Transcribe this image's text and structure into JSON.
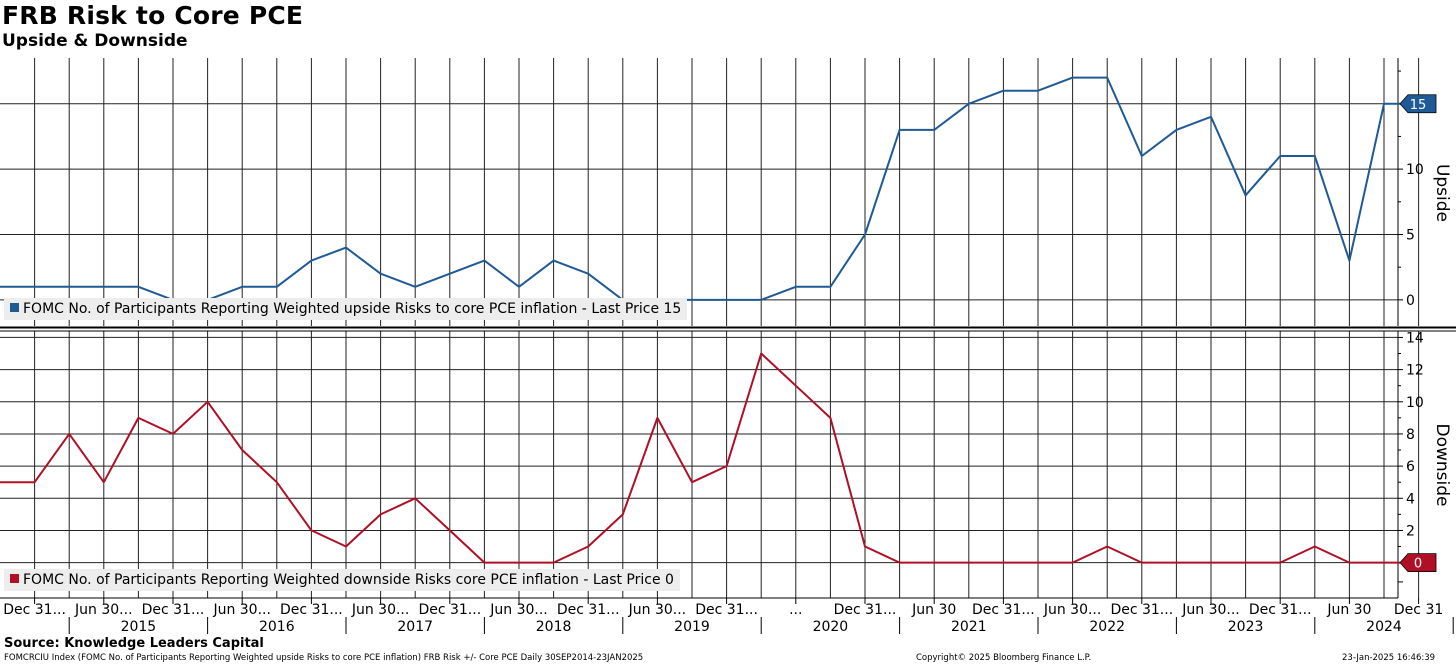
{
  "title": "FRB Risk to Core PCE",
  "subtitle": "Upside & Downside",
  "source": "Source: Knowledge Leaders Capital",
  "footer": {
    "left": "FOMCRCIU Index (FOMC No. of Participants Reporting Weighted upside Risks to core PCE inflation) FRB Risk +/- Core PCE  Daily 30SEP2014-23JAN2025",
    "center": "Copyright© 2025 Bloomberg Finance L.P.",
    "right": "23-Jan-2025 16:46:39"
  },
  "colors": {
    "upside": "#1f5a96",
    "downside": "#b01025",
    "grid": "#000000",
    "legend_bg": "#ededed"
  },
  "chart_data": [
    {
      "type": "line",
      "name": "Upside",
      "ylabel": "Upside",
      "ylim": [
        -2,
        18.5
      ],
      "yticks": [
        0,
        5,
        10,
        15
      ],
      "legend": "FOMC No. of Participants Reporting Weighted upside Risks to core PCE inflation - Last Price 15",
      "last_price": "15",
      "grid": true,
      "series": [
        {
          "name": "FOMC No. of Participants Reporting Weighted upside Risks to core PCE inflation",
          "x": [
            "2014-09-30",
            "2014-12-31",
            "2015-03-31",
            "2015-06-30",
            "2015-09-30",
            "2015-12-31",
            "2016-03-31",
            "2016-06-30",
            "2016-09-30",
            "2016-12-31",
            "2017-03-31",
            "2017-06-30",
            "2017-09-30",
            "2017-12-31",
            "2018-03-31",
            "2018-06-30",
            "2018-09-30",
            "2018-12-31",
            "2019-03-31",
            "2019-06-30",
            "2019-09-30",
            "2019-12-31",
            "2020-03-31",
            "2020-06-30",
            "2020-09-30",
            "2020-12-31",
            "2021-03-31",
            "2021-06-30",
            "2021-09-30",
            "2021-12-31",
            "2022-03-31",
            "2022-06-30",
            "2022-09-30",
            "2022-12-31",
            "2023-03-31",
            "2023-06-30",
            "2023-09-30",
            "2023-12-31",
            "2024-03-31",
            "2024-06-30",
            "2024-09-30",
            "2024-12-31"
          ],
          "values": [
            1,
            1,
            1,
            1,
            1,
            0,
            0,
            1,
            1,
            3,
            4,
            2,
            1,
            2,
            3,
            1,
            3,
            2,
            0,
            0,
            0,
            0,
            0,
            1,
            1,
            5,
            13,
            13,
            15,
            16,
            16,
            17,
            17,
            11,
            13,
            14,
            8,
            11,
            11,
            3,
            15,
            15
          ]
        }
      ]
    },
    {
      "type": "line",
      "name": "Downside",
      "ylabel": "Downside",
      "ylim": [
        -2.2,
        14.4
      ],
      "yticks": [
        2,
        4,
        6,
        8,
        10,
        12,
        14
      ],
      "legend": "FOMC No. of Participants Reporting Weighted downside Risks core PCE inflation - Last Price 0",
      "last_price": "0",
      "grid": true,
      "series": [
        {
          "name": "FOMC No. of Participants Reporting Weighted downside Risks core PCE inflation",
          "x": [
            "2014-09-30",
            "2014-12-31",
            "2015-03-31",
            "2015-06-30",
            "2015-09-30",
            "2015-12-31",
            "2016-03-31",
            "2016-06-30",
            "2016-09-30",
            "2016-12-31",
            "2017-03-31",
            "2017-06-30",
            "2017-09-30",
            "2017-12-31",
            "2018-03-31",
            "2018-06-30",
            "2018-09-30",
            "2018-12-31",
            "2019-03-31",
            "2019-06-30",
            "2019-09-30",
            "2019-12-31",
            "2020-03-31",
            "2020-06-30",
            "2020-09-30",
            "2020-12-31",
            "2021-03-31",
            "2021-06-30",
            "2021-09-30",
            "2021-12-31",
            "2022-03-31",
            "2022-06-30",
            "2022-09-30",
            "2022-12-31",
            "2023-03-31",
            "2023-06-30",
            "2023-09-30",
            "2023-12-31",
            "2024-03-31",
            "2024-06-30",
            "2024-09-30",
            "2024-12-31"
          ],
          "values": [
            5,
            5,
            8,
            5,
            9,
            8,
            10,
            7,
            5,
            2,
            1,
            3,
            4,
            2,
            0,
            0,
            0,
            1,
            3,
            9,
            5,
            6,
            13,
            11,
            9,
            1,
            0,
            0,
            0,
            0,
            0,
            0,
            1,
            0,
            0,
            0,
            0,
            0,
            1,
            0,
            0,
            0
          ]
        }
      ]
    }
  ],
  "x_axis": {
    "tick_labels": [
      "Dec 31...",
      "Jun 30...",
      "Dec 31...",
      "Jun 30...",
      "Dec 31...",
      "Jun 30...",
      "Dec 31...",
      "Jun 30...",
      "Dec 31...",
      "Jun 30...",
      "Dec 31...",
      "...",
      "Dec 31...",
      "Jun 30",
      "Dec 31...",
      "Jun 30...",
      "Dec 31...",
      "Jun 30...",
      "Dec 31...",
      "Jun 30",
      "Dec 31"
    ],
    "years": [
      "2015",
      "2016",
      "2017",
      "2018",
      "2019",
      "2020",
      "2021",
      "2022",
      "2023",
      "2024"
    ]
  }
}
